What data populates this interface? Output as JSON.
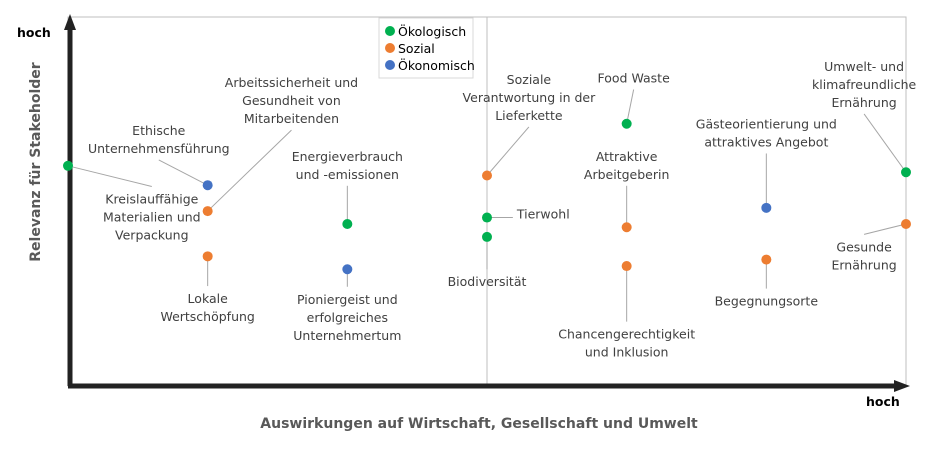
{
  "chart_data": {
    "type": "scatter",
    "title": "",
    "xlabel": "Auswirkungen auf Wirtschaft, Gesellschaft und Umwelt",
    "ylabel": "Relevanz für Stakeholder",
    "x_high_label": "hoch",
    "y_high_label": "hoch",
    "xlim": [
      0,
      6
    ],
    "ylim": [
      0,
      6
    ],
    "grid": false,
    "quadrant_divider_x": 3,
    "legend": {
      "placement": "top-center",
      "entries": [
        {
          "key": "oekologisch",
          "name": "Ökologisch",
          "color": "#00B050"
        },
        {
          "key": "sozial",
          "name": "Sozial",
          "color": "#ED7D31"
        },
        {
          "key": "oekonomisch",
          "name": "Ökonomisch",
          "color": "#4472C4"
        }
      ]
    },
    "points": [
      {
        "label": [
          "Kreislauffähige",
          "Materialien und",
          "Verpackung"
        ],
        "category": "oekologisch",
        "x": 0.0,
        "y": 3.9,
        "label_anchor": [
          0.6,
          3.1
        ]
      },
      {
        "label": [
          "Ethische",
          "Unternehmensführung"
        ],
        "category": "oekonomisch",
        "x": 1.0,
        "y": 3.6,
        "label_anchor": [
          0.65,
          4.3
        ]
      },
      {
        "label": [
          "Arbeitssicherheit und",
          "Gesundheit von",
          "Mitarbeitenden"
        ],
        "category": "sozial",
        "x": 1.0,
        "y": 3.2,
        "label_anchor": [
          1.6,
          4.9
        ]
      },
      {
        "label": [
          "Lokale",
          "Wertschöpfung"
        ],
        "category": "sozial",
        "x": 1.0,
        "y": 2.5,
        "label_anchor": [
          1.0,
          1.7
        ]
      },
      {
        "label": [
          "Energieverbrauch",
          "und -emissionen"
        ],
        "category": "oekologisch",
        "x": 2.0,
        "y": 3.0,
        "label_anchor": [
          2.0,
          3.9
        ]
      },
      {
        "label": [
          "Pioniergeist und",
          "erfolgreiches",
          "Unternehmertum"
        ],
        "category": "oekonomisch",
        "x": 2.0,
        "y": 2.3,
        "label_anchor": [
          2.0,
          1.55
        ]
      },
      {
        "label": [
          "Soziale",
          "Verantwortung in der",
          "Lieferkette"
        ],
        "category": "sozial",
        "x": 3.0,
        "y": 3.75,
        "label_anchor": [
          3.3,
          4.95
        ]
      },
      {
        "label": [
          "Tierwohl"
        ],
        "category": "oekologisch",
        "x": 3.0,
        "y": 3.1,
        "label_anchor": [
          3.4,
          3.15
        ]
      },
      {
        "label": [
          "Biodiversität"
        ],
        "category": "oekologisch",
        "x": 3.0,
        "y": 2.8,
        "label_anchor": [
          3.0,
          2.1
        ]
      },
      {
        "label": [
          "Food Waste"
        ],
        "category": "oekologisch",
        "x": 4.0,
        "y": 4.55,
        "label_anchor": [
          4.05,
          5.25
        ]
      },
      {
        "label": [
          "Attraktive",
          "Arbeitgeberin"
        ],
        "category": "sozial",
        "x": 4.0,
        "y": 2.95,
        "label_anchor": [
          4.0,
          3.9
        ]
      },
      {
        "label": [
          "Chancengerechtigkeit",
          "und Inklusion"
        ],
        "category": "sozial",
        "x": 4.0,
        "y": 2.35,
        "label_anchor": [
          4.0,
          1.15
        ]
      },
      {
        "label": [
          "Gästeorientierung und",
          "attraktives Angebot"
        ],
        "category": "oekonomisch",
        "x": 5.0,
        "y": 3.25,
        "label_anchor": [
          5.0,
          4.4
        ]
      },
      {
        "label": [
          "Begegnungsorte"
        ],
        "category": "sozial",
        "x": 5.0,
        "y": 2.45,
        "label_anchor": [
          5.0,
          1.8
        ]
      },
      {
        "label": [
          "Umwelt- und",
          "klimafreundliche",
          "Ernährung"
        ],
        "category": "oekologisch",
        "x": 6.0,
        "y": 3.8,
        "label_anchor": [
          5.7,
          5.15
        ]
      },
      {
        "label": [
          "Gesunde",
          "Ernährung"
        ],
        "category": "sozial",
        "x": 6.0,
        "y": 3.0,
        "label_anchor": [
          5.7,
          2.5
        ]
      }
    ]
  }
}
